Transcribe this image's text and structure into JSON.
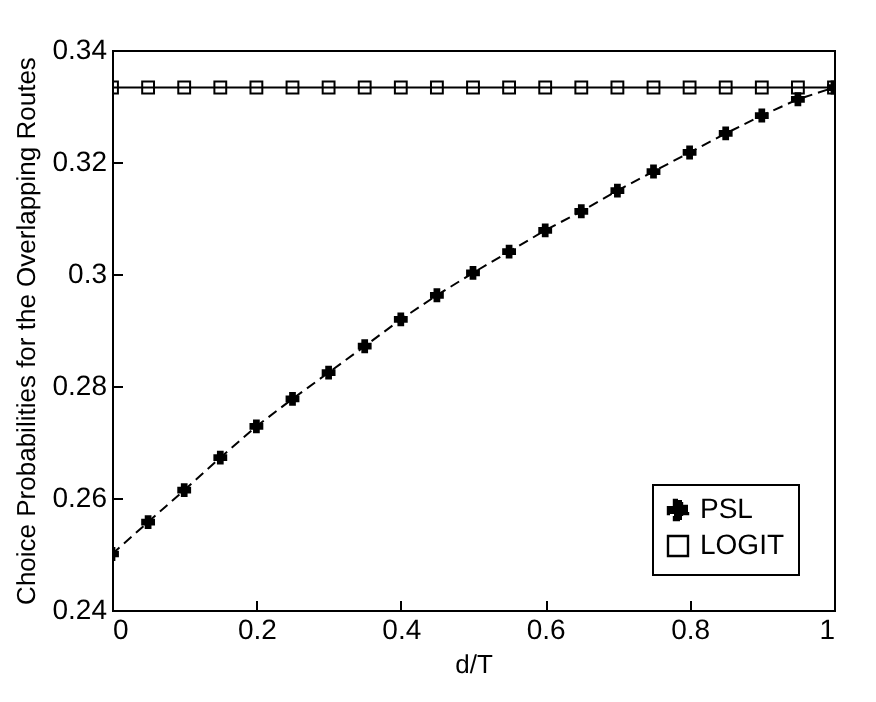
{
  "chart_data": {
    "type": "line",
    "xlabel": "d/T",
    "ylabel": "Choice Probabilities for the Overlapping Routes",
    "x": [
      0,
      0.05,
      0.1,
      0.15,
      0.2,
      0.25,
      0.3,
      0.35,
      0.4,
      0.45,
      0.5,
      0.55,
      0.6,
      0.65,
      0.7,
      0.75,
      0.8,
      0.85,
      0.9,
      0.95,
      1
    ],
    "series": [
      {
        "name": "PSL",
        "color": "#000000",
        "marker": "cross",
        "line_style": "dashed",
        "values": [
          0.25,
          0.2557,
          0.2614,
          0.2672,
          0.2728,
          0.2777,
          0.2824,
          0.2871,
          0.2919,
          0.2962,
          0.3002,
          0.304,
          0.3078,
          0.3112,
          0.3149,
          0.3183,
          0.3217,
          0.3251,
          0.3283,
          0.3312,
          0.3333
        ]
      },
      {
        "name": "LOGIT",
        "color": "#000000",
        "marker": "square",
        "line_style": "solid",
        "values": [
          0.3333,
          0.3333,
          0.3333,
          0.3333,
          0.3333,
          0.3333,
          0.3333,
          0.3333,
          0.3333,
          0.3333,
          0.3333,
          0.3333,
          0.3333,
          0.3333,
          0.3333,
          0.3333,
          0.3333,
          0.3333,
          0.3333,
          0.3333,
          0.3333
        ]
      }
    ],
    "xlim": [
      0,
      1
    ],
    "xticks": [
      0,
      0.2,
      0.4,
      0.6,
      0.8,
      1
    ],
    "ylim": [
      0.24,
      0.34
    ],
    "yticks": [
      0.24,
      0.26,
      0.28,
      0.3,
      0.32,
      0.34
    ],
    "grid": false,
    "legend": "bottom right"
  }
}
